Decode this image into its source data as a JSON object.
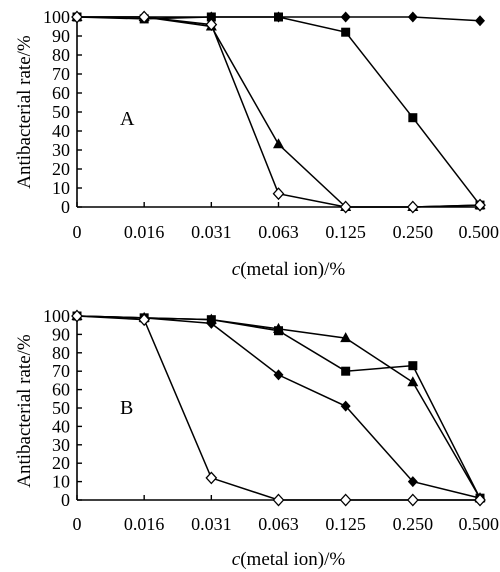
{
  "chart_data": [
    {
      "type": "line",
      "panel_label": "A",
      "title": "",
      "xlabel_prefix": "c",
      "xlabel_rest": "(metal ion)/%",
      "ylabel": "Antibacterial rate/%",
      "categories": [
        "0",
        "0.016",
        "0.031",
        "0.063",
        "0.125",
        "0.250",
        "0.500"
      ],
      "yticks": [
        0,
        10,
        20,
        30,
        40,
        50,
        60,
        70,
        80,
        90,
        100
      ],
      "ylim": [
        0,
        100
      ],
      "grid": false,
      "legend": "none",
      "series": [
        {
          "marker": "filled-diamond",
          "values": [
            100,
            100,
            100,
            100,
            100,
            100,
            98
          ]
        },
        {
          "marker": "filled-square",
          "values": [
            100,
            99,
            100,
            100,
            92,
            47,
            1
          ]
        },
        {
          "marker": "filled-triangle",
          "values": [
            100,
            100,
            95,
            33,
            0,
            0,
            1
          ]
        },
        {
          "marker": "open-diamond",
          "values": [
            100,
            100,
            96,
            7,
            0,
            0,
            1
          ]
        }
      ]
    },
    {
      "type": "line",
      "panel_label": "B",
      "title": "",
      "xlabel_prefix": "c",
      "xlabel_rest": "(metal ion)/%",
      "ylabel": "Antibacterial rate/%",
      "categories": [
        "0",
        "0.016",
        "0.031",
        "0.063",
        "0.125",
        "0.250",
        "0.500"
      ],
      "yticks": [
        0,
        10,
        20,
        30,
        40,
        50,
        60,
        70,
        80,
        90,
        100
      ],
      "ylim": [
        0,
        100
      ],
      "grid": false,
      "legend": "none",
      "series": [
        {
          "marker": "filled-triangle",
          "values": [
            100,
            99,
            98,
            93,
            88,
            64,
            1
          ]
        },
        {
          "marker": "filled-square",
          "values": [
            100,
            99,
            98,
            92,
            70,
            73,
            1
          ]
        },
        {
          "marker": "filled-diamond",
          "values": [
            100,
            99,
            96,
            68,
            51,
            10,
            1
          ]
        },
        {
          "marker": "open-diamond",
          "values": [
            100,
            98,
            12,
            0,
            0,
            0,
            0
          ]
        }
      ]
    }
  ]
}
